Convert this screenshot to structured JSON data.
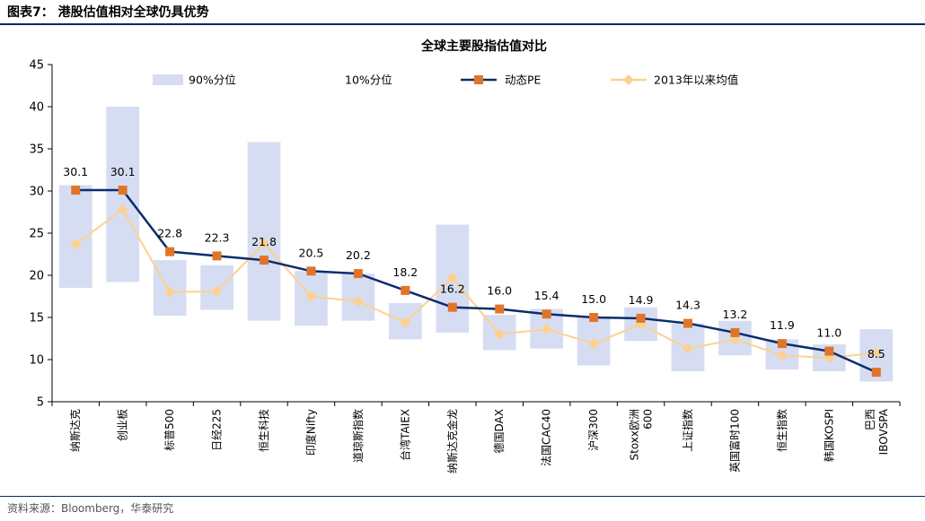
{
  "header": {
    "figure_title": "图表7：  港股估值相对全球仍具优势"
  },
  "footer": {
    "source": "资料来源：Bloomberg，华泰研究"
  },
  "chart_data": {
    "type": "bar",
    "title": "全球主要股指估值对比",
    "xlabel": "",
    "ylabel": "",
    "ylim": [
      5,
      45
    ],
    "yticks": [
      5,
      10,
      15,
      20,
      25,
      30,
      35,
      40,
      45
    ],
    "grid": false,
    "legend_position": "top",
    "categories": [
      [
        "纳斯达克"
      ],
      [
        "创业板"
      ],
      [
        "标普500"
      ],
      [
        "日经225"
      ],
      [
        "恒生科技"
      ],
      [
        "印度Nifty"
      ],
      [
        "道琼斯指数"
      ],
      [
        "台湾TAIEX"
      ],
      [
        "纳斯达克金龙"
      ],
      [
        "德国DAX"
      ],
      [
        "法国CAC40"
      ],
      [
        "沪深300"
      ],
      [
        "Stoxx欧洲",
        "600"
      ],
      [
        "上证指数"
      ],
      [
        "英国富时100"
      ],
      [
        "恒生指数"
      ],
      [
        "韩国KOSPI"
      ],
      [
        "巴西",
        "IBOVSPA"
      ]
    ],
    "series": [
      {
        "name": "90%分位",
        "role": "band-top",
        "color": "#d6ddf2",
        "values": [
          30.7,
          40.0,
          21.8,
          21.2,
          35.8,
          20.5,
          20.2,
          16.7,
          26.0,
          15.3,
          16.0,
          15.0,
          16.2,
          14.3,
          14.6,
          12.4,
          11.8,
          13.6
        ]
      },
      {
        "name": "10%分位",
        "role": "band-bottom",
        "color": "#ffffff",
        "values": [
          18.5,
          19.2,
          15.2,
          15.9,
          14.6,
          14.0,
          14.6,
          12.4,
          13.2,
          11.1,
          11.3,
          9.3,
          12.2,
          8.6,
          10.5,
          8.8,
          8.6,
          7.4
        ]
      },
      {
        "name": "动态PE",
        "role": "line",
        "color": "#0b2c6e",
        "marker_color": "#e0752a",
        "values": [
          30.1,
          30.1,
          22.8,
          22.3,
          21.8,
          20.5,
          20.2,
          18.2,
          16.2,
          16.0,
          15.4,
          15.0,
          14.9,
          14.3,
          13.2,
          11.9,
          11.0,
          8.5
        ],
        "labels": [
          "30.1",
          "30.1",
          "22.8",
          "22.3",
          "21.8",
          "20.5",
          "20.2",
          "18.2",
          "16.2",
          "16.0",
          "15.4",
          "15.0",
          "14.9",
          "14.3",
          "13.2",
          "11.9",
          "11.0",
          "8.5"
        ]
      },
      {
        "name": "2013年以来均值",
        "role": "line",
        "color": "#fcd18f",
        "marker_color": "#fcd18f",
        "values": [
          23.7,
          27.8,
          18.0,
          18.1,
          23.8,
          17.5,
          16.9,
          14.4,
          19.7,
          13.0,
          13.6,
          11.9,
          14.2,
          11.3,
          12.4,
          10.5,
          10.2,
          10.8
        ]
      }
    ]
  }
}
